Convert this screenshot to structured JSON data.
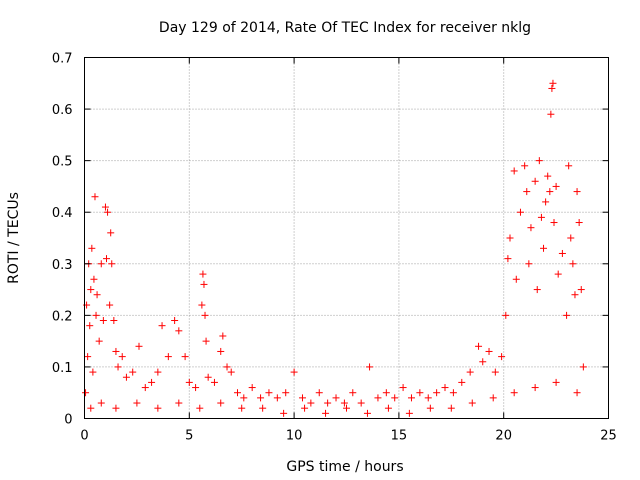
{
  "chart_data": {
    "type": "scatter",
    "title": "Day 129 of 2014, Rate Of TEC Index for receiver nklg",
    "xlabel": "GPS time / hours",
    "ylabel": "ROTI / TECUs",
    "xlim": [
      0,
      25
    ],
    "ylim": [
      0,
      0.7
    ],
    "x_ticks": [
      0,
      5,
      10,
      15,
      20,
      25
    ],
    "x_tick_labels": [
      "0",
      "5",
      "10",
      "15",
      "20",
      "25"
    ],
    "y_ticks": [
      0,
      0.1,
      0.2,
      0.3,
      0.4,
      0.5,
      0.6,
      0.7
    ],
    "y_tick_labels": [
      "0",
      "0.1",
      "0.2",
      "0.3",
      "0.4",
      "0.5",
      "0.6",
      "0.7"
    ],
    "grid": true,
    "marker": "+",
    "color": "#ff0000",
    "series": [
      {
        "points": [
          [
            0.05,
            0.05
          ],
          [
            0.1,
            0.22
          ],
          [
            0.15,
            0.12
          ],
          [
            0.2,
            0.3
          ],
          [
            0.25,
            0.18
          ],
          [
            0.3,
            0.25
          ],
          [
            0.35,
            0.33
          ],
          [
            0.4,
            0.09
          ],
          [
            0.45,
            0.27
          ],
          [
            0.5,
            0.43
          ],
          [
            0.55,
            0.2
          ],
          [
            0.6,
            0.24
          ],
          [
            0.7,
            0.15
          ],
          [
            0.8,
            0.3
          ],
          [
            0.9,
            0.19
          ],
          [
            1.0,
            0.41
          ],
          [
            1.05,
            0.31
          ],
          [
            1.1,
            0.4
          ],
          [
            1.2,
            0.22
          ],
          [
            1.25,
            0.36
          ],
          [
            1.3,
            0.3
          ],
          [
            1.4,
            0.19
          ],
          [
            1.5,
            0.13
          ],
          [
            1.6,
            0.1
          ],
          [
            1.8,
            0.12
          ],
          [
            2.0,
            0.08
          ],
          [
            2.3,
            0.09
          ],
          [
            2.6,
            0.14
          ],
          [
            2.9,
            0.06
          ],
          [
            3.2,
            0.07
          ],
          [
            3.5,
            0.09
          ],
          [
            3.7,
            0.18
          ],
          [
            4.0,
            0.12
          ],
          [
            4.3,
            0.19
          ],
          [
            4.5,
            0.17
          ],
          [
            4.8,
            0.12
          ],
          [
            5.0,
            0.07
          ],
          [
            5.3,
            0.06
          ],
          [
            5.6,
            0.22
          ],
          [
            5.65,
            0.28
          ],
          [
            5.7,
            0.26
          ],
          [
            5.75,
            0.2
          ],
          [
            5.8,
            0.15
          ],
          [
            5.9,
            0.08
          ],
          [
            6.2,
            0.07
          ],
          [
            6.5,
            0.13
          ],
          [
            6.6,
            0.16
          ],
          [
            6.8,
            0.1
          ],
          [
            7.0,
            0.09
          ],
          [
            7.3,
            0.05
          ],
          [
            7.6,
            0.04
          ],
          [
            8.0,
            0.06
          ],
          [
            8.4,
            0.04
          ],
          [
            8.8,
            0.05
          ],
          [
            9.2,
            0.04
          ],
          [
            9.6,
            0.05
          ],
          [
            10.0,
            0.09
          ],
          [
            10.4,
            0.04
          ],
          [
            10.8,
            0.03
          ],
          [
            11.2,
            0.05
          ],
          [
            11.6,
            0.03
          ],
          [
            12.0,
            0.04
          ],
          [
            12.4,
            0.03
          ],
          [
            12.8,
            0.05
          ],
          [
            13.2,
            0.03
          ],
          [
            13.6,
            0.1
          ],
          [
            14.0,
            0.04
          ],
          [
            14.4,
            0.05
          ],
          [
            14.8,
            0.04
          ],
          [
            15.2,
            0.06
          ],
          [
            15.6,
            0.04
          ],
          [
            16.0,
            0.05
          ],
          [
            16.4,
            0.04
          ],
          [
            16.8,
            0.05
          ],
          [
            17.2,
            0.06
          ],
          [
            17.6,
            0.05
          ],
          [
            18.0,
            0.07
          ],
          [
            18.4,
            0.09
          ],
          [
            18.8,
            0.14
          ],
          [
            19.0,
            0.11
          ],
          [
            19.3,
            0.13
          ],
          [
            19.6,
            0.09
          ],
          [
            19.9,
            0.12
          ],
          [
            20.1,
            0.2
          ],
          [
            20.2,
            0.31
          ],
          [
            20.3,
            0.35
          ],
          [
            20.5,
            0.48
          ],
          [
            20.6,
            0.27
          ],
          [
            20.8,
            0.4
          ],
          [
            21.0,
            0.49
          ],
          [
            21.1,
            0.44
          ],
          [
            21.2,
            0.3
          ],
          [
            21.3,
            0.37
          ],
          [
            21.5,
            0.46
          ],
          [
            21.6,
            0.25
          ],
          [
            21.7,
            0.5
          ],
          [
            21.8,
            0.39
          ],
          [
            21.9,
            0.33
          ],
          [
            22.0,
            0.42
          ],
          [
            22.1,
            0.47
          ],
          [
            22.2,
            0.44
          ],
          [
            22.25,
            0.59
          ],
          [
            22.3,
            0.64
          ],
          [
            22.35,
            0.65
          ],
          [
            22.4,
            0.38
          ],
          [
            22.5,
            0.45
          ],
          [
            22.6,
            0.28
          ],
          [
            22.8,
            0.32
          ],
          [
            23.0,
            0.2
          ],
          [
            23.1,
            0.49
          ],
          [
            23.2,
            0.35
          ],
          [
            23.3,
            0.3
          ],
          [
            23.4,
            0.24
          ],
          [
            23.5,
            0.44
          ],
          [
            23.6,
            0.38
          ],
          [
            23.7,
            0.25
          ],
          [
            23.8,
            0.1
          ],
          [
            0.3,
            0.02
          ],
          [
            0.8,
            0.03
          ],
          [
            1.5,
            0.02
          ],
          [
            2.5,
            0.03
          ],
          [
            3.5,
            0.02
          ],
          [
            4.5,
            0.03
          ],
          [
            5.5,
            0.02
          ],
          [
            6.5,
            0.03
          ],
          [
            7.5,
            0.02
          ],
          [
            8.5,
            0.02
          ],
          [
            9.5,
            0.01
          ],
          [
            10.5,
            0.02
          ],
          [
            11.5,
            0.01
          ],
          [
            12.5,
            0.02
          ],
          [
            13.5,
            0.01
          ],
          [
            14.5,
            0.02
          ],
          [
            15.5,
            0.01
          ],
          [
            16.5,
            0.02
          ],
          [
            17.5,
            0.02
          ],
          [
            18.5,
            0.03
          ],
          [
            19.5,
            0.04
          ],
          [
            20.5,
            0.05
          ],
          [
            21.5,
            0.06
          ],
          [
            22.5,
            0.07
          ],
          [
            23.5,
            0.05
          ]
        ]
      }
    ]
  }
}
